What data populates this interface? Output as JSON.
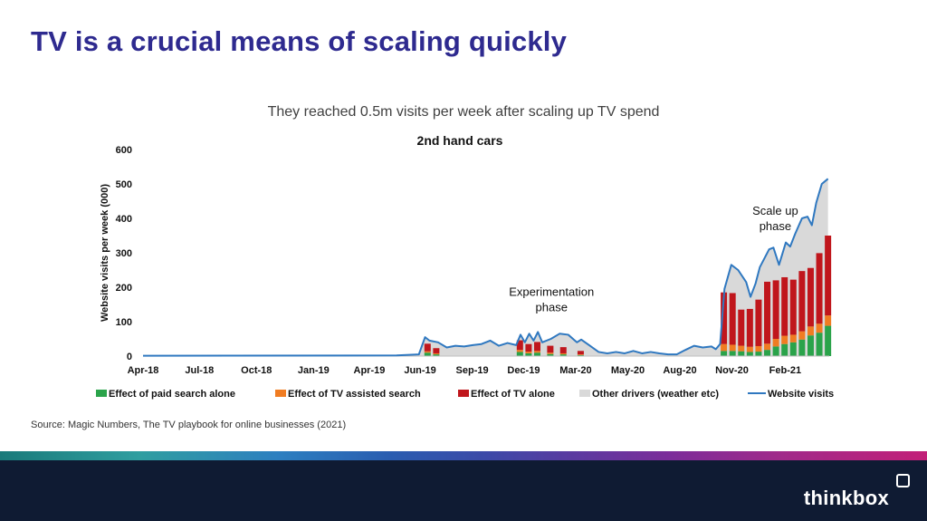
{
  "slide": {
    "title": "TV is a crucial means of scaling quickly",
    "subtitle": "They reached 0.5m visits per week after scaling up TV spend",
    "source": "Source: Magic Numbers, The TV playbook for online businesses (2021)",
    "brand": "thinkbox"
  },
  "colors": {
    "paid_search": "#2aa34a",
    "tv_assisted": "#f07c22",
    "tv_alone": "#c0161c",
    "other": "#d9d9d9",
    "website_line": "#2f78c0",
    "title": "#2e2a8f"
  },
  "chart_data": {
    "type": "area",
    "title": "2nd hand cars",
    "xlabel": "",
    "ylabel": "Website visits per week (000)",
    "ylim": [
      0,
      600
    ],
    "yticks": [
      0,
      100,
      200,
      300,
      400,
      500,
      600
    ],
    "xlim": [
      "2018-04-01",
      "2021-04-12"
    ],
    "xticks": [
      "Apr-18",
      "Jul-18",
      "Oct-18",
      "Jan-19",
      "Apr-19",
      "Jun-19",
      "Sep-19",
      "Dec-19",
      "Mar-20",
      "May-20",
      "Aug-20",
      "Nov-20",
      "Feb-21"
    ],
    "xtick_dates": [
      "2018-04-01",
      "2018-07-01",
      "2018-10-01",
      "2019-01-01",
      "2019-04-01",
      "2019-06-22",
      "2019-09-14",
      "2019-12-06",
      "2020-02-28",
      "2020-05-22",
      "2020-08-14",
      "2020-11-06",
      "2021-01-31"
    ],
    "grid": false,
    "legend_position": "bottom",
    "annotations": [
      {
        "text": [
          "Experimentation",
          "phase"
        ],
        "x": "2020-01-20",
        "y": 175
      },
      {
        "text": [
          "Scale up",
          "phase"
        ],
        "x": "2021-01-15",
        "y": 410
      }
    ],
    "series": [
      {
        "name": "Effect of paid search alone",
        "key": "paid_search",
        "kind": "stacked_bar",
        "points": [
          [
            "2019-07-04",
            10
          ],
          [
            "2019-07-18",
            5
          ],
          [
            "2019-11-30",
            12
          ],
          [
            "2019-12-14",
            8
          ],
          [
            "2019-12-28",
            10
          ],
          [
            "2020-01-18",
            6
          ],
          [
            "2020-02-08",
            5
          ],
          [
            "2020-03-07",
            3
          ],
          [
            "2020-10-24",
            15
          ],
          [
            "2020-11-07",
            15
          ],
          [
            "2020-11-21",
            14
          ],
          [
            "2020-12-05",
            12
          ],
          [
            "2020-12-19",
            13
          ],
          [
            "2021-01-02",
            18
          ],
          [
            "2021-01-16",
            28
          ],
          [
            "2021-01-30",
            35
          ],
          [
            "2021-02-13",
            40
          ],
          [
            "2021-02-27",
            48
          ],
          [
            "2021-03-13",
            60
          ],
          [
            "2021-03-27",
            68
          ],
          [
            "2021-04-10",
            88
          ]
        ]
      },
      {
        "name": "Effect of TV assisted search",
        "key": "tv_assisted",
        "kind": "stacked_bar",
        "points": [
          [
            "2019-07-04",
            4
          ],
          [
            "2019-07-18",
            3
          ],
          [
            "2019-11-30",
            6
          ],
          [
            "2019-12-14",
            5
          ],
          [
            "2019-12-28",
            5
          ],
          [
            "2020-01-18",
            4
          ],
          [
            "2020-02-08",
            3
          ],
          [
            "2020-03-07",
            2
          ],
          [
            "2020-10-24",
            20
          ],
          [
            "2020-11-07",
            18
          ],
          [
            "2020-11-21",
            16
          ],
          [
            "2020-12-05",
            15
          ],
          [
            "2020-12-19",
            16
          ],
          [
            "2021-01-02",
            18
          ],
          [
            "2021-01-16",
            22
          ],
          [
            "2021-01-30",
            24
          ],
          [
            "2021-02-13",
            22
          ],
          [
            "2021-02-27",
            24
          ],
          [
            "2021-03-13",
            26
          ],
          [
            "2021-03-27",
            26
          ],
          [
            "2021-04-10",
            30
          ]
        ]
      },
      {
        "name": "Effect of TV alone",
        "key": "tv_alone",
        "kind": "stacked_bar",
        "points": [
          [
            "2019-07-04",
            22
          ],
          [
            "2019-07-18",
            15
          ],
          [
            "2019-11-30",
            28
          ],
          [
            "2019-12-14",
            22
          ],
          [
            "2019-12-28",
            26
          ],
          [
            "2020-01-18",
            20
          ],
          [
            "2020-02-08",
            18
          ],
          [
            "2020-03-07",
            10
          ],
          [
            "2020-10-24",
            150
          ],
          [
            "2020-11-07",
            150
          ],
          [
            "2020-11-21",
            105
          ],
          [
            "2020-12-05",
            110
          ],
          [
            "2020-12-19",
            135
          ],
          [
            "2021-01-02",
            180
          ],
          [
            "2021-01-16",
            170
          ],
          [
            "2021-01-30",
            170
          ],
          [
            "2021-02-13",
            160
          ],
          [
            "2021-02-27",
            175
          ],
          [
            "2021-03-13",
            170
          ],
          [
            "2021-03-27",
            205
          ],
          [
            "2021-04-10",
            232
          ]
        ]
      },
      {
        "name": "Other drivers (weather etc)",
        "key": "other",
        "kind": "area_to_line"
      },
      {
        "name": "Website visits",
        "key": "website_line",
        "kind": "line",
        "points": [
          [
            "2018-04-01",
            1
          ],
          [
            "2019-05-15",
            2
          ],
          [
            "2019-06-20",
            5
          ],
          [
            "2019-06-30",
            55
          ],
          [
            "2019-07-07",
            45
          ],
          [
            "2019-07-21",
            40
          ],
          [
            "2019-08-04",
            25
          ],
          [
            "2019-08-18",
            30
          ],
          [
            "2019-09-01",
            28
          ],
          [
            "2019-09-15",
            32
          ],
          [
            "2019-09-29",
            35
          ],
          [
            "2019-10-13",
            45
          ],
          [
            "2019-10-27",
            30
          ],
          [
            "2019-11-10",
            38
          ],
          [
            "2019-11-24",
            32
          ],
          [
            "2019-12-01",
            62
          ],
          [
            "2019-12-08",
            40
          ],
          [
            "2019-12-15",
            65
          ],
          [
            "2019-12-22",
            45
          ],
          [
            "2019-12-29",
            70
          ],
          [
            "2020-01-05",
            40
          ],
          [
            "2020-01-19",
            50
          ],
          [
            "2020-02-02",
            65
          ],
          [
            "2020-02-16",
            62
          ],
          [
            "2020-03-01",
            40
          ],
          [
            "2020-03-08",
            48
          ],
          [
            "2020-03-22",
            30
          ],
          [
            "2020-04-05",
            12
          ],
          [
            "2020-04-19",
            8
          ],
          [
            "2020-05-03",
            12
          ],
          [
            "2020-05-17",
            8
          ],
          [
            "2020-05-31",
            15
          ],
          [
            "2020-06-14",
            8
          ],
          [
            "2020-06-28",
            12
          ],
          [
            "2020-07-12",
            8
          ],
          [
            "2020-07-26",
            5
          ],
          [
            "2020-08-09",
            5
          ],
          [
            "2020-08-23",
            18
          ],
          [
            "2020-09-06",
            30
          ],
          [
            "2020-09-20",
            25
          ],
          [
            "2020-10-04",
            28
          ],
          [
            "2020-10-11",
            20
          ],
          [
            "2020-10-18",
            35
          ],
          [
            "2020-10-25",
            195
          ],
          [
            "2020-11-05",
            265
          ],
          [
            "2020-11-16",
            250
          ],
          [
            "2020-11-29",
            215
          ],
          [
            "2020-12-06",
            172
          ],
          [
            "2020-12-14",
            210
          ],
          [
            "2020-12-21",
            258
          ],
          [
            "2021-01-05",
            310
          ],
          [
            "2021-01-12",
            315
          ],
          [
            "2021-01-21",
            265
          ],
          [
            "2021-02-01",
            330
          ],
          [
            "2021-02-08",
            318
          ],
          [
            "2021-02-16",
            355
          ],
          [
            "2021-02-27",
            400
          ],
          [
            "2021-03-08",
            405
          ],
          [
            "2021-03-15",
            380
          ],
          [
            "2021-03-22",
            445
          ],
          [
            "2021-03-31",
            500
          ],
          [
            "2021-04-10",
            515
          ]
        ]
      }
    ]
  }
}
